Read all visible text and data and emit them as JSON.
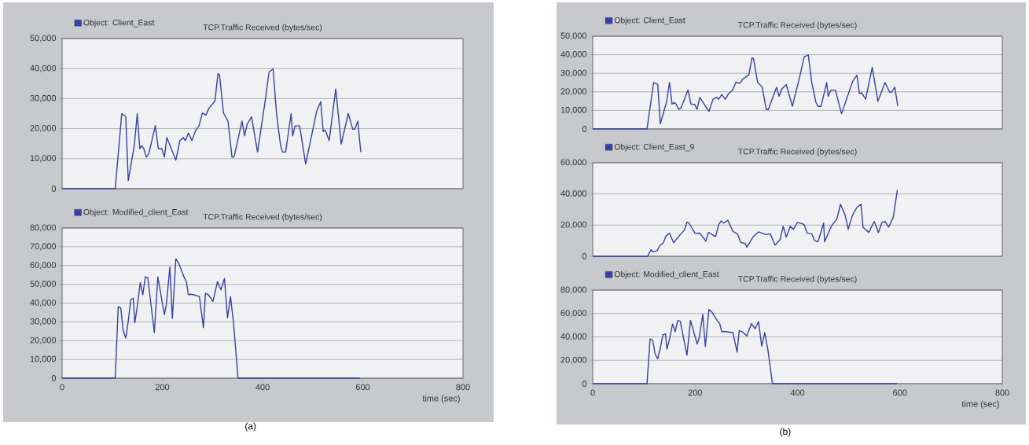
{
  "chart_data": [
    {
      "type": "line",
      "title": "TCP.Traffic Received (bytes/sec)",
      "legend": "top left",
      "grid": "y",
      "tick_labels": "y",
      "x": [
        0,
        106,
        119,
        127,
        132,
        139,
        144,
        150,
        155,
        159,
        163,
        168,
        173,
        186,
        192,
        199,
        204,
        209,
        227,
        235,
        242,
        246,
        252,
        259,
        266,
        273,
        280,
        287,
        293,
        305,
        311,
        314,
        322,
        331,
        339,
        343,
        359,
        364,
        369,
        378,
        390,
        405,
        413,
        421,
        428,
        436,
        440,
        446,
        457,
        460,
        465,
        474,
        486,
        508,
        516,
        521,
        525,
        533,
        546,
        557,
        571,
        580,
        584,
        590,
        596
      ],
      "series": [
        {
          "name": "Object: Client_East",
          "color": "#3441a8",
          "values": [
            0,
            0,
            25000,
            24000,
            2700,
            9500,
            14300,
            25000,
            13300,
            14300,
            13300,
            10500,
            11600,
            21000,
            13300,
            13300,
            10500,
            17000,
            9500,
            16000,
            17000,
            16000,
            18500,
            16000,
            19200,
            20900,
            25200,
            24500,
            26800,
            29200,
            38300,
            38000,
            25200,
            22500,
            10500,
            10500,
            22500,
            17600,
            21400,
            23900,
            12200,
            29000,
            38800,
            39900,
            24700,
            14300,
            12200,
            12200,
            25000,
            17600,
            20900,
            20900,
            8200,
            25800,
            29000,
            19000,
            19500,
            16000,
            33200,
            14900,
            25000,
            19800,
            19800,
            22500,
            12200
          ]
        }
      ],
      "xlim": [
        0,
        800
      ],
      "xticks": [
        0,
        200,
        400,
        600,
        800
      ],
      "ylim": [
        0,
        50000
      ],
      "yticks": [
        0,
        {
          "value": 10000,
          "label": "10,000"
        },
        {
          "value": 20000,
          "label": "20,000"
        },
        {
          "value": 30000,
          "label": "30,000"
        },
        {
          "value": 40000,
          "label": "40,000"
        },
        {
          "value": 50000,
          "label": "50,000"
        }
      ]
    },
    {
      "type": "line",
      "title": "TCP.Traffic Received (bytes/sec)",
      "xlabel": "time (sec)",
      "legend": "top left",
      "grid": "y",
      "annotations": [
        "(a)"
      ],
      "x": [
        0,
        106,
        112,
        117,
        122,
        127,
        132,
        137,
        142,
        145,
        150,
        156,
        161,
        166,
        171,
        184,
        191,
        204,
        208,
        215,
        220,
        227,
        233,
        243,
        248,
        252,
        256,
        263,
        274,
        282,
        286,
        292,
        301,
        310,
        317,
        324,
        330,
        336,
        342,
        351,
        594
      ],
      "series": [
        {
          "name": "Object: Modified_client_East",
          "color": "#3441a8",
          "values": [
            0,
            0,
            38200,
            37400,
            25200,
            21300,
            30400,
            41700,
            42600,
            29500,
            38200,
            51000,
            44400,
            54000,
            53400,
            24300,
            54000,
            33900,
            39100,
            59200,
            31800,
            63600,
            61000,
            54000,
            51400,
            44400,
            44700,
            44400,
            43500,
            26900,
            45200,
            44400,
            40900,
            51400,
            47000,
            53100,
            32100,
            43500,
            29500,
            0,
            0
          ]
        }
      ],
      "xlim": [
        0,
        800
      ],
      "xticks": [
        0,
        200,
        400,
        600,
        800
      ],
      "ylim": [
        0,
        80000
      ],
      "yticks": [
        0,
        {
          "value": 10000,
          "label": "10,000"
        },
        {
          "value": 20000,
          "label": "20,000"
        },
        {
          "value": 30000,
          "label": "30,000"
        },
        {
          "value": 40000,
          "label": "40,000"
        },
        {
          "value": 50000,
          "label": "50,000"
        },
        {
          "value": 60000,
          "label": "60,000"
        },
        {
          "value": 70000,
          "label": "70,000"
        },
        {
          "value": 80000,
          "label": "80,000"
        }
      ]
    },
    {
      "type": "line",
      "title": "TCP.Traffic Received (bytes/sec)",
      "legend": "top left",
      "grid": "y",
      "tick_labels": "y",
      "x": [
        0,
        106,
        119,
        127,
        132,
        139,
        144,
        150,
        155,
        159,
        163,
        168,
        173,
        186,
        192,
        199,
        204,
        209,
        227,
        235,
        242,
        246,
        252,
        259,
        266,
        273,
        280,
        287,
        293,
        305,
        311,
        314,
        322,
        331,
        339,
        343,
        359,
        364,
        369,
        378,
        390,
        405,
        413,
        421,
        428,
        436,
        440,
        446,
        457,
        460,
        465,
        474,
        486,
        508,
        516,
        521,
        525,
        533,
        546,
        557,
        571,
        580,
        584,
        590,
        596
      ],
      "series": [
        {
          "name": "Object: Client_East",
          "color": "#3441a8",
          "values": [
            0,
            0,
            25000,
            24000,
            2700,
            9500,
            14300,
            25000,
            13300,
            14300,
            13300,
            10500,
            11600,
            21000,
            13300,
            13300,
            10500,
            17000,
            9500,
            16000,
            17000,
            16000,
            18500,
            16000,
            19200,
            20900,
            25200,
            24500,
            26800,
            29200,
            38300,
            38000,
            25200,
            22500,
            10500,
            10500,
            22500,
            17600,
            21400,
            23900,
            12200,
            29000,
            38800,
            39900,
            24700,
            14300,
            12200,
            12200,
            25000,
            17600,
            20900,
            20900,
            8200,
            25800,
            29000,
            19000,
            19500,
            16000,
            33200,
            14900,
            25000,
            19800,
            19800,
            22500,
            12200
          ]
        }
      ],
      "xlim": [
        0,
        800
      ],
      "xticks": [
        0,
        200,
        400,
        600,
        800
      ],
      "ylim": [
        0,
        50000
      ],
      "yticks": [
        0,
        {
          "value": 10000,
          "label": "10,000"
        },
        {
          "value": 20000,
          "label": "20,000"
        },
        {
          "value": 30000,
          "label": "30,000"
        },
        {
          "value": 40000,
          "label": "40,000"
        },
        {
          "value": 50000,
          "label": "50,000"
        }
      ]
    },
    {
      "type": "line",
      "title": "TCP.Traffic Received (bytes/sec)",
      "legend": "top left",
      "grid": "y",
      "tick_labels": "y",
      "x": [
        0,
        107,
        114,
        118,
        126,
        131,
        138,
        143,
        150,
        158,
        172,
        179,
        184,
        188,
        200,
        209,
        221,
        226,
        240,
        246,
        251,
        256,
        264,
        274,
        283,
        289,
        298,
        301,
        313,
        324,
        338,
        347,
        356,
        366,
        372,
        378,
        386,
        392,
        400,
        407,
        413,
        419,
        428,
        433,
        440,
        451,
        453,
        466,
        477,
        484,
        493,
        499,
        507,
        516,
        524,
        528,
        539,
        550,
        558,
        565,
        571,
        578,
        587,
        595
      ],
      "series": [
        {
          "name": "Object: Client_East_9",
          "color": "#3441a8",
          "values": [
            0,
            0,
            4200,
            2800,
            3600,
            6800,
            8700,
            12900,
            14900,
            8700,
            14300,
            16700,
            21900,
            21300,
            14700,
            14900,
            9700,
            15300,
            12700,
            20300,
            22700,
            21300,
            23100,
            15900,
            14300,
            8900,
            8200,
            5800,
            12300,
            15700,
            13900,
            14300,
            7200,
            10700,
            19300,
            12300,
            19300,
            17300,
            21700,
            21100,
            20300,
            14900,
            14300,
            10300,
            9300,
            21300,
            9300,
            19300,
            24000,
            33400,
            26400,
            17300,
            26000,
            31400,
            33400,
            18700,
            15300,
            22300,
            15300,
            21700,
            22300,
            18700,
            25000,
            42500
          ]
        }
      ],
      "xlim": [
        0,
        800
      ],
      "xticks": [
        0,
        200,
        400,
        600,
        800
      ],
      "ylim": [
        0,
        60000
      ],
      "yticks": [
        0,
        {
          "value": 20000,
          "label": "20,000"
        },
        {
          "value": 40000,
          "label": "40,000"
        },
        {
          "value": 60000,
          "label": "60,000"
        }
      ]
    },
    {
      "type": "line",
      "title": "TCP.Traffic Received (bytes/sec)",
      "xlabel": "time (sec)",
      "legend": "top left",
      "grid": "y",
      "annotations": [
        "(b)"
      ],
      "x": [
        0,
        106,
        112,
        117,
        122,
        127,
        132,
        137,
        142,
        145,
        150,
        156,
        161,
        166,
        171,
        184,
        191,
        204,
        208,
        215,
        220,
        227,
        233,
        243,
        248,
        252,
        256,
        263,
        274,
        282,
        286,
        292,
        301,
        310,
        317,
        324,
        330,
        336,
        342,
        351,
        594
      ],
      "series": [
        {
          "name": "Object: Modified_client_East",
          "color": "#3441a8",
          "values": [
            0,
            0,
            38200,
            37400,
            25200,
            21300,
            30400,
            41700,
            42600,
            29500,
            38200,
            51000,
            44400,
            54000,
            53400,
            24300,
            54000,
            33900,
            39100,
            59200,
            31800,
            63600,
            61000,
            54000,
            51400,
            44400,
            44700,
            44400,
            43500,
            26900,
            45200,
            44400,
            40900,
            51400,
            47000,
            53100,
            32100,
            43500,
            29500,
            0,
            0
          ]
        }
      ],
      "xlim": [
        0,
        800
      ],
      "xticks": [
        0,
        200,
        400,
        600,
        800
      ],
      "ylim": [
        0,
        80000
      ],
      "yticks": [
        0,
        {
          "value": 20000,
          "label": "20,000"
        },
        {
          "value": 40000,
          "label": "40,000"
        },
        {
          "value": 60000,
          "label": "60,000"
        },
        {
          "value": 80000,
          "label": "80,000"
        }
      ]
    }
  ]
}
